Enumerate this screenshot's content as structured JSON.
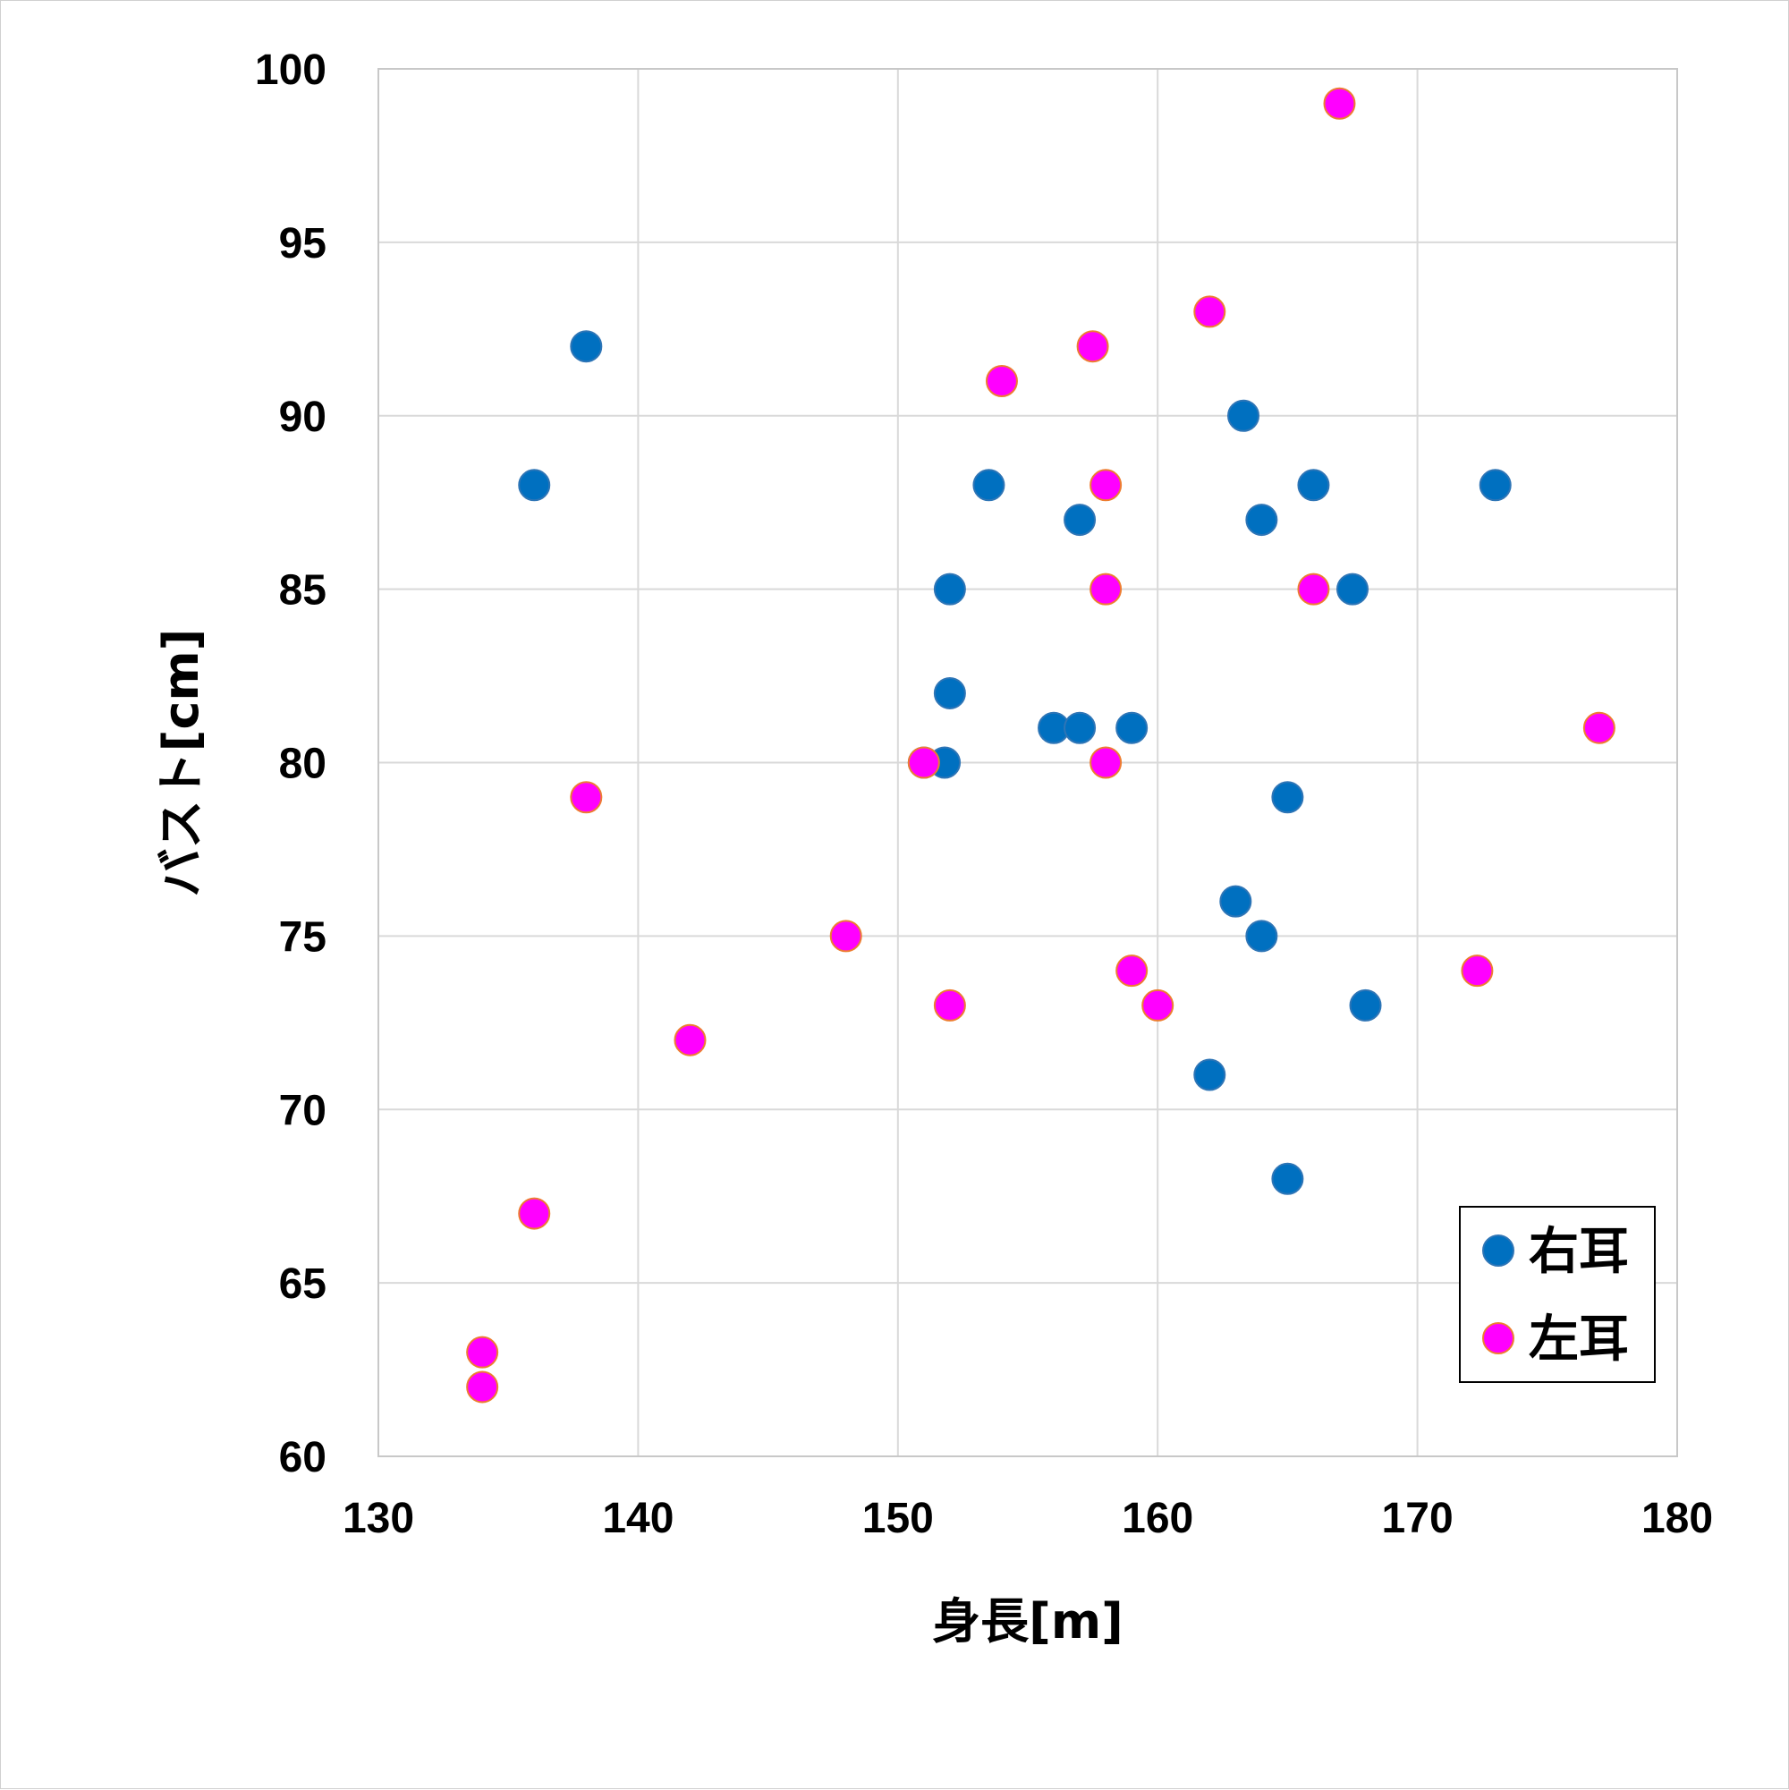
{
  "chart_data": {
    "type": "scatter",
    "xlabel": "身長[m]",
    "ylabel": "バスト[cm]",
    "xlim": [
      130,
      180
    ],
    "ylim": [
      60,
      100
    ],
    "xticks": [
      "130",
      "140",
      "150",
      "160",
      "170",
      "180"
    ],
    "yticks": [
      "60",
      "65",
      "70",
      "75",
      "80",
      "85",
      "90",
      "95",
      "100"
    ],
    "grid": true,
    "legend_position": "bottom-right",
    "series": [
      {
        "name": "右耳",
        "color": "#0070C0",
        "points": [
          [
            136,
            88
          ],
          [
            138,
            92
          ],
          [
            151,
            80
          ],
          [
            151.8,
            80
          ],
          [
            152,
            82
          ],
          [
            152,
            85
          ],
          [
            153.5,
            88
          ],
          [
            156,
            81
          ],
          [
            157,
            87
          ],
          [
            157,
            81
          ],
          [
            159,
            81
          ],
          [
            162,
            71
          ],
          [
            163,
            76
          ],
          [
            163.3,
            90
          ],
          [
            164,
            87
          ],
          [
            164,
            75
          ],
          [
            165,
            79
          ],
          [
            165,
            68
          ],
          [
            166,
            88
          ],
          [
            167.5,
            85
          ],
          [
            168,
            73
          ],
          [
            173,
            88
          ]
        ]
      },
      {
        "name": "左耳",
        "color": "#FF00FF",
        "points": [
          [
            134,
            63
          ],
          [
            134,
            62
          ],
          [
            136,
            67
          ],
          [
            138,
            79
          ],
          [
            142,
            72
          ],
          [
            148,
            75
          ],
          [
            151,
            80
          ],
          [
            152,
            73
          ],
          [
            154,
            91
          ],
          [
            157.5,
            92
          ],
          [
            158,
            88
          ],
          [
            158,
            85
          ],
          [
            158,
            80
          ],
          [
            159,
            74
          ],
          [
            160,
            73
          ],
          [
            162,
            93
          ],
          [
            166,
            85
          ],
          [
            167,
            99
          ],
          [
            172.3,
            74
          ],
          [
            177,
            81
          ]
        ]
      }
    ]
  }
}
